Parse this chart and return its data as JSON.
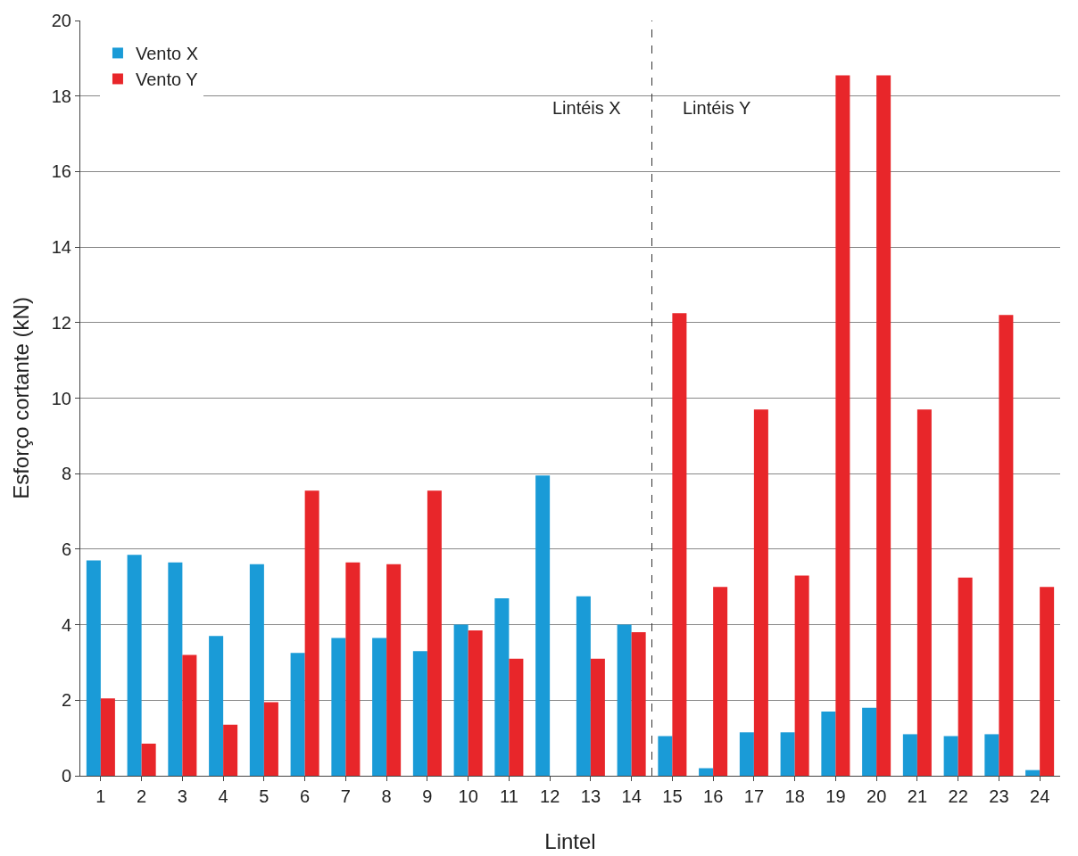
{
  "chart_data": {
    "type": "bar",
    "xlabel": "Lintel",
    "ylabel": "Esforço cortante (kN)",
    "x": [
      1,
      2,
      3,
      4,
      5,
      6,
      7,
      8,
      9,
      10,
      11,
      12,
      13,
      14,
      15,
      16,
      17,
      18,
      19,
      20,
      21,
      22,
      23,
      24
    ],
    "xlim": [
      0.5,
      24.5
    ],
    "xticks": [
      1,
      2,
      3,
      4,
      5,
      6,
      7,
      8,
      9,
      10,
      11,
      12,
      13,
      14,
      15,
      16,
      17,
      18,
      19,
      20,
      21,
      22,
      23,
      24
    ],
    "ylim": [
      0,
      20
    ],
    "yticks": [
      0,
      2,
      4,
      6,
      8,
      10,
      12,
      14,
      16,
      18,
      20
    ],
    "series": [
      {
        "name": "Vento X",
        "color": "#1a9bd7",
        "values": [
          5.7,
          5.85,
          5.65,
          3.7,
          5.6,
          3.25,
          3.65,
          3.65,
          3.3,
          4.0,
          4.7,
          7.95,
          4.75,
          4.0,
          1.05,
          0.2,
          1.15,
          1.15,
          1.7,
          1.8,
          1.1,
          1.05,
          1.1,
          0.15
        ]
      },
      {
        "name": "Vento Y",
        "color": "#e8262a",
        "values": [
          2.05,
          0.85,
          3.2,
          1.35,
          1.95,
          7.55,
          5.65,
          5.6,
          7.55,
          3.85,
          3.1,
          null,
          3.1,
          3.8,
          12.25,
          5.0,
          9.7,
          5.3,
          18.55,
          18.55,
          9.7,
          5.25,
          12.2,
          5.0
        ]
      }
    ],
    "ref_lines": [
      {
        "axis": "x",
        "value": 14.5,
        "color": "#333333",
        "line_style": "dashed"
      }
    ],
    "annotations": [
      "Lintéis X",
      "Lintéis Y"
    ],
    "grid": "y",
    "legend": "top left"
  }
}
